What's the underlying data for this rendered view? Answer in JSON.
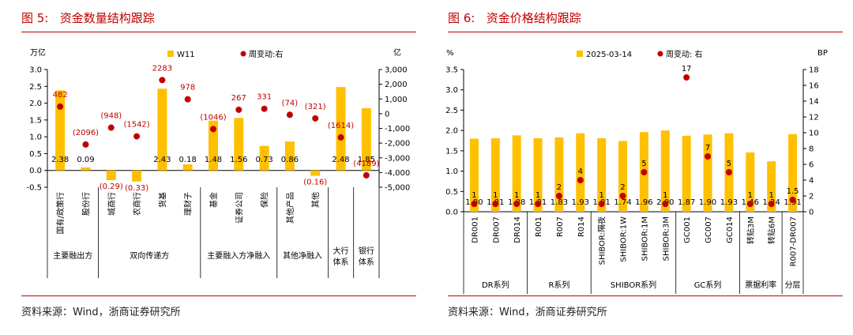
{
  "charts": [
    {
      "fig_label": "图 5:",
      "title": "资金数量结构跟踪",
      "source": "资料来源：Wind，浙商证券研究所",
      "chart_data": {
        "type": "bar",
        "y_left_unit": "万亿",
        "y_right_unit": "亿",
        "ylim_left": [
          -0.5,
          3.0
        ],
        "ylim_right": [
          -5000,
          3000
        ],
        "yticks_left": [
          "3.0",
          "2.5",
          "2.0",
          "1.5",
          "1.0",
          "0.5",
          "0.0",
          "-0.5"
        ],
        "yticks_right": [
          "3,000",
          "2,000",
          "1,000",
          "0",
          "-1,000",
          "-2,000",
          "-3,000",
          "-4,000",
          "-5,000"
        ],
        "legend": {
          "bar": "W11",
          "dot": "周变动:右"
        },
        "categories": [
          "国有/政策行",
          "股份行",
          "城商行",
          "农商行",
          "货基",
          "理财子",
          "基金",
          "证券公司",
          "保险",
          "其他产品",
          "其他",
          "",
          ""
        ],
        "bar_values": [
          2.38,
          0.09,
          -0.29,
          -0.33,
          2.43,
          0.18,
          1.48,
          1.56,
          0.73,
          0.86,
          -0.16,
          2.48,
          1.85
        ],
        "bar_labels": [
          "2.38",
          "0.09",
          "(0.29)",
          "(0.33)",
          "2.43",
          "0.18",
          "1.48",
          "1.56",
          "0.73",
          "0.86",
          "(0.16)",
          "2.48",
          "1.85"
        ],
        "dot_values": [
          482,
          -2096,
          -948,
          -1542,
          2283,
          978,
          -1046,
          267,
          331,
          -74,
          -321,
          -1614,
          -4189
        ],
        "dot_labels": [
          "482",
          "(2096)",
          "(948)",
          "(1542)",
          "2283",
          "978",
          "(1046)",
          "267",
          "331",
          "(74)",
          "(321)",
          "(1614)",
          "(4189)"
        ],
        "groups": [
          {
            "label": "主要融出方",
            "start": 0,
            "end": 1
          },
          {
            "label": "双向传递方",
            "start": 2,
            "end": 5
          },
          {
            "label": "主要融入方净融入",
            "start": 6,
            "end": 8
          },
          {
            "label": "其他净融入",
            "start": 9,
            "end": 10
          },
          {
            "label": "大行\n体系",
            "start": 11,
            "end": 11
          },
          {
            "label": "银行\n体系",
            "start": 12,
            "end": 12
          }
        ],
        "colors": {
          "bar": "#ffc000",
          "dot": "#c00000",
          "dot_label": "#c00000"
        }
      }
    },
    {
      "fig_label": "图 6:",
      "title": "资金价格结构跟踪",
      "source": "资料来源：Wind，浙商证券研究所",
      "chart_data": {
        "type": "bar",
        "y_left_unit": "%",
        "y_right_unit": "BP",
        "ylim_left": [
          0,
          3.5
        ],
        "ylim_right": [
          0,
          18
        ],
        "yticks_left": [
          "3.5",
          "3.0",
          "2.5",
          "2.0",
          "1.5",
          "1.0",
          "0.5",
          "0.0"
        ],
        "yticks_right": [
          "18",
          "16",
          "14",
          "12",
          "10",
          "8",
          "6",
          "4",
          "2",
          "0"
        ],
        "legend": {
          "bar": "2025-03-14",
          "dot": "周变动: 右"
        },
        "categories": [
          "DR001",
          "DR007",
          "DR014",
          "R001",
          "R007",
          "R014",
          "SHIBOR:隔夜",
          "SHIBOR:1W",
          "SHIBOR:1M",
          "SHIBOR:3M",
          "GC001",
          "GC007",
          "GC014",
          "转贴3M",
          "转贴6M",
          "R007-DR007"
        ],
        "bar_values": [
          1.8,
          1.81,
          1.88,
          1.81,
          1.83,
          1.93,
          1.81,
          1.74,
          1.96,
          2.0,
          1.87,
          1.9,
          1.93,
          1.46,
          1.24,
          1.91
        ],
        "bar_labels": [
          "1.80",
          "1.81",
          "1.88",
          "1.81",
          "1.83",
          "1.93",
          "1.81",
          "1.74",
          "1.96",
          "2.00",
          "1.87",
          "1.90",
          "1.93",
          "1.46",
          "1.24",
          "1.91"
        ],
        "dot_values": [
          1,
          1,
          1,
          1,
          2,
          4,
          1,
          2,
          5,
          1,
          17,
          7,
          5,
          1,
          1,
          1.5
        ],
        "dot_labels": [
          "1",
          "1",
          "1",
          "1",
          "2",
          "4",
          "1",
          "2",
          "5",
          "1",
          "17",
          "7",
          "5",
          "1",
          "1",
          "1.5"
        ],
        "groups": [
          {
            "label": "DR系列",
            "start": 0,
            "end": 2
          },
          {
            "label": "R系列",
            "start": 3,
            "end": 5
          },
          {
            "label": "SHIBOR系列",
            "start": 6,
            "end": 9
          },
          {
            "label": "GC系列",
            "start": 10,
            "end": 12
          },
          {
            "label": "票据利率",
            "start": 13,
            "end": 14
          },
          {
            "label": "分层",
            "start": 15,
            "end": 15
          }
        ],
        "colors": {
          "bar": "#ffc000",
          "dot": "#c00000",
          "dot_label": "#000000"
        }
      }
    }
  ]
}
